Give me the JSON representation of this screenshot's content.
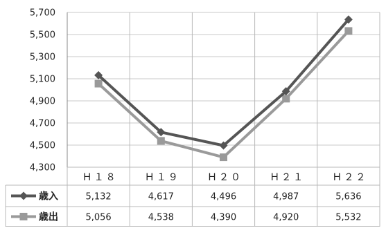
{
  "chart_data": {
    "type": "line",
    "categories": [
      "Ｈ１８",
      "Ｈ１９",
      "Ｈ２０",
      "Ｈ２１",
      "Ｈ２２"
    ],
    "series": [
      {
        "name": "歳入",
        "values": [
          5132,
          4617,
          4496,
          4987,
          5636
        ],
        "color": "#555555",
        "marker": "diamond"
      },
      {
        "name": "歳出",
        "values": [
          5056,
          4538,
          4390,
          4920,
          5532
        ],
        "color": "#9a9a9a",
        "marker": "square"
      }
    ],
    "table_values": [
      [
        "5,132",
        "4,617",
        "4,496",
        "4,987",
        "5,636"
      ],
      [
        "5,056",
        "4,538",
        "4,390",
        "4,920",
        "5,532"
      ]
    ],
    "yticks": [
      "4,300",
      "4,500",
      "4,700",
      "4,900",
      "5,100",
      "5,300",
      "5,500",
      "5,700"
    ],
    "ylim": [
      4300,
      5700
    ],
    "grid": true,
    "legend": "data-table",
    "title": "",
    "xlabel": "",
    "ylabel": ""
  }
}
